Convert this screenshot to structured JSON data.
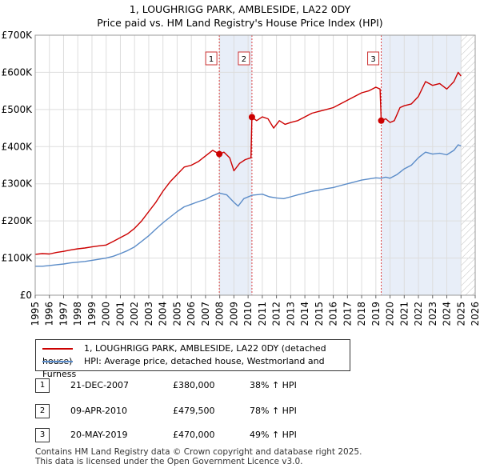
{
  "title_line1": "1, LOUGHRIGG PARK, AMBLESIDE, LA22 0DY",
  "title_line2": "Price paid vs. HM Land Registry's House Price Index (HPI)",
  "chart_data": {
    "type": "line",
    "x_range": [
      1995,
      2026
    ],
    "ylim": [
      0,
      700000
    ],
    "y_ticks": [
      0,
      100000,
      200000,
      300000,
      400000,
      500000,
      600000,
      700000
    ],
    "y_tick_labels": [
      "£0",
      "£100K",
      "£200K",
      "£300K",
      "£400K",
      "£500K",
      "£600K",
      "£700K"
    ],
    "x_ticks": [
      1995,
      1996,
      1997,
      1998,
      1999,
      2000,
      2001,
      2002,
      2003,
      2004,
      2005,
      2006,
      2007,
      2008,
      2009,
      2010,
      2011,
      2012,
      2013,
      2014,
      2015,
      2016,
      2017,
      2018,
      2019,
      2020,
      2021,
      2022,
      2023,
      2024,
      2025,
      2026
    ],
    "shaded_ranges": [
      [
        2007.97,
        2010.27
      ],
      [
        2019.38,
        2025.0
      ]
    ],
    "hatched_from": 2025.0,
    "series": [
      {
        "name": "1, LOUGHRIGG PARK, AMBLESIDE, LA22 0DY (detached house)",
        "color": "#cc0000",
        "points": [
          [
            1995.0,
            110000
          ],
          [
            1995.5,
            112000
          ],
          [
            1996.0,
            111000
          ],
          [
            1996.5,
            115000
          ],
          [
            1997.0,
            118000
          ],
          [
            1997.5,
            122000
          ],
          [
            1998.0,
            125000
          ],
          [
            1998.5,
            127000
          ],
          [
            1999.0,
            130000
          ],
          [
            1999.5,
            133000
          ],
          [
            2000.0,
            135000
          ],
          [
            2000.5,
            145000
          ],
          [
            2001.0,
            155000
          ],
          [
            2001.5,
            165000
          ],
          [
            2002.0,
            180000
          ],
          [
            2002.5,
            200000
          ],
          [
            2003.0,
            225000
          ],
          [
            2003.5,
            250000
          ],
          [
            2004.0,
            280000
          ],
          [
            2004.5,
            305000
          ],
          [
            2005.0,
            325000
          ],
          [
            2005.5,
            345000
          ],
          [
            2006.0,
            350000
          ],
          [
            2006.5,
            360000
          ],
          [
            2007.0,
            375000
          ],
          [
            2007.5,
            390000
          ],
          [
            2007.97,
            380000
          ],
          [
            2008.3,
            385000
          ],
          [
            2008.7,
            370000
          ],
          [
            2009.0,
            335000
          ],
          [
            2009.4,
            355000
          ],
          [
            2009.8,
            365000
          ],
          [
            2010.2,
            370000
          ],
          [
            2010.27,
            479500
          ],
          [
            2010.6,
            470000
          ],
          [
            2011.0,
            480000
          ],
          [
            2011.4,
            475000
          ],
          [
            2011.8,
            450000
          ],
          [
            2012.2,
            470000
          ],
          [
            2012.6,
            460000
          ],
          [
            2013.0,
            465000
          ],
          [
            2013.5,
            470000
          ],
          [
            2014.0,
            480000
          ],
          [
            2014.5,
            490000
          ],
          [
            2015.0,
            495000
          ],
          [
            2015.5,
            500000
          ],
          [
            2016.0,
            505000
          ],
          [
            2016.5,
            515000
          ],
          [
            2017.0,
            525000
          ],
          [
            2017.5,
            535000
          ],
          [
            2018.0,
            545000
          ],
          [
            2018.5,
            550000
          ],
          [
            2019.0,
            560000
          ],
          [
            2019.3,
            555000
          ],
          [
            2019.38,
            470000
          ],
          [
            2019.7,
            475000
          ],
          [
            2020.0,
            465000
          ],
          [
            2020.3,
            470000
          ],
          [
            2020.7,
            505000
          ],
          [
            2021.0,
            510000
          ],
          [
            2021.5,
            515000
          ],
          [
            2022.0,
            535000
          ],
          [
            2022.5,
            575000
          ],
          [
            2023.0,
            565000
          ],
          [
            2023.5,
            570000
          ],
          [
            2024.0,
            555000
          ],
          [
            2024.5,
            575000
          ],
          [
            2024.8,
            600000
          ],
          [
            2025.0,
            590000
          ]
        ]
      },
      {
        "name": "HPI: Average price, detached house, Westmorland and Furness",
        "color": "#5b8cc8",
        "points": [
          [
            1995.0,
            78000
          ],
          [
            1995.5,
            78000
          ],
          [
            1996.0,
            80000
          ],
          [
            1996.5,
            82000
          ],
          [
            1997.0,
            84000
          ],
          [
            1997.5,
            87000
          ],
          [
            1998.0,
            89000
          ],
          [
            1998.5,
            91000
          ],
          [
            1999.0,
            94000
          ],
          [
            1999.5,
            97000
          ],
          [
            2000.0,
            100000
          ],
          [
            2000.5,
            105000
          ],
          [
            2001.0,
            112000
          ],
          [
            2001.5,
            120000
          ],
          [
            2002.0,
            130000
          ],
          [
            2002.5,
            145000
          ],
          [
            2003.0,
            160000
          ],
          [
            2003.5,
            178000
          ],
          [
            2004.0,
            195000
          ],
          [
            2004.5,
            210000
          ],
          [
            2005.0,
            225000
          ],
          [
            2005.5,
            238000
          ],
          [
            2006.0,
            245000
          ],
          [
            2006.5,
            252000
          ],
          [
            2007.0,
            258000
          ],
          [
            2007.5,
            268000
          ],
          [
            2007.97,
            275000
          ],
          [
            2008.5,
            270000
          ],
          [
            2009.0,
            250000
          ],
          [
            2009.3,
            240000
          ],
          [
            2009.7,
            260000
          ],
          [
            2010.27,
            269000
          ],
          [
            2011.0,
            272000
          ],
          [
            2011.5,
            265000
          ],
          [
            2012.0,
            262000
          ],
          [
            2012.5,
            260000
          ],
          [
            2013.0,
            265000
          ],
          [
            2013.5,
            270000
          ],
          [
            2014.0,
            275000
          ],
          [
            2014.5,
            280000
          ],
          [
            2015.0,
            283000
          ],
          [
            2015.5,
            287000
          ],
          [
            2016.0,
            290000
          ],
          [
            2016.5,
            295000
          ],
          [
            2017.0,
            300000
          ],
          [
            2017.5,
            305000
          ],
          [
            2018.0,
            310000
          ],
          [
            2018.5,
            313000
          ],
          [
            2019.0,
            316000
          ],
          [
            2019.38,
            315000
          ],
          [
            2019.7,
            318000
          ],
          [
            2020.0,
            315000
          ],
          [
            2020.5,
            325000
          ],
          [
            2021.0,
            340000
          ],
          [
            2021.5,
            350000
          ],
          [
            2022.0,
            370000
          ],
          [
            2022.5,
            385000
          ],
          [
            2023.0,
            380000
          ],
          [
            2023.5,
            382000
          ],
          [
            2024.0,
            378000
          ],
          [
            2024.5,
            390000
          ],
          [
            2024.8,
            405000
          ],
          [
            2025.0,
            402000
          ]
        ]
      }
    ],
    "sale_markers": [
      {
        "label": "1",
        "x": 2007.97,
        "y": 380000
      },
      {
        "label": "2",
        "x": 2010.27,
        "y": 479500
      },
      {
        "label": "3",
        "x": 2019.38,
        "y": 470000
      }
    ]
  },
  "legend": {
    "property_label": "1, LOUGHRIGG PARK, AMBLESIDE, LA22 0DY (detached house)",
    "hpi_label": "HPI: Average price, detached house, Westmorland and Furness",
    "property_color": "#cc0000",
    "hpi_color": "#5b8cc8"
  },
  "sales": [
    {
      "num": "1",
      "date": "21-DEC-2007",
      "price": "£380,000",
      "hpi": "38% ↑ HPI"
    },
    {
      "num": "2",
      "date": "09-APR-2010",
      "price": "£479,500",
      "hpi": "78% ↑ HPI"
    },
    {
      "num": "3",
      "date": "20-MAY-2019",
      "price": "£470,000",
      "hpi": "49% ↑ HPI"
    }
  ],
  "footer_line1": "Contains HM Land Registry data © Crown copyright and database right 2025.",
  "footer_line2": "This data is licensed under the Open Government Licence v3.0."
}
